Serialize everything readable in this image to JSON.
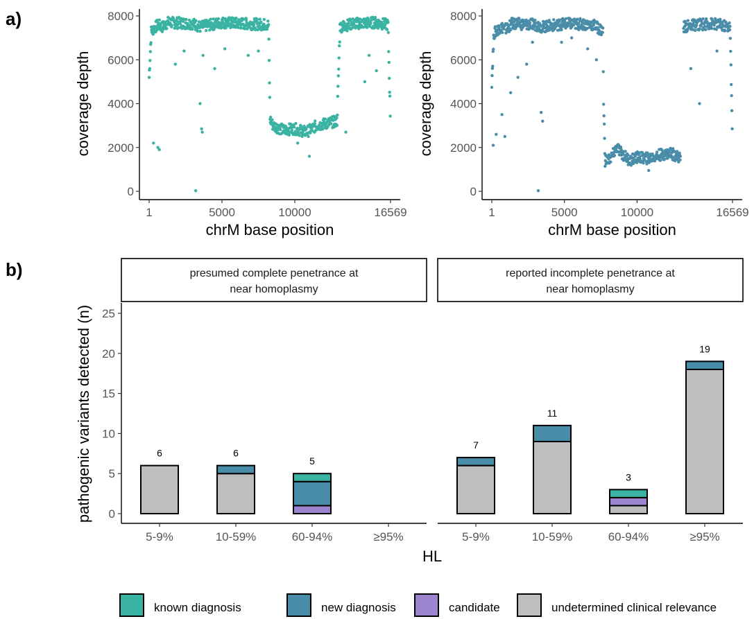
{
  "panels": {
    "a": "a)",
    "b": "b)"
  },
  "chart_data": [
    {
      "type": "scatter",
      "panel": "a-left",
      "color": "#3AB3A3",
      "xlabel": "chrM base position",
      "ylabel": "coverage depth",
      "xlim": [
        1,
        16569
      ],
      "ylim": [
        0,
        8000
      ],
      "xticks": [
        1,
        5000,
        10000,
        16569
      ],
      "xtick_labels": [
        "1",
        "5000",
        "10000",
        "16569"
      ],
      "yticks": [
        0,
        2000,
        4000,
        6000,
        8000
      ],
      "ytick_labels": [
        "0",
        "2000",
        "4000",
        "6000",
        "8000"
      ],
      "profile": [
        [
          1,
          5200
        ],
        [
          150,
          7300
        ],
        [
          600,
          7600
        ],
        [
          900,
          7500
        ],
        [
          1300,
          7700
        ],
        [
          3000,
          7650
        ],
        [
          3500,
          7500
        ],
        [
          5000,
          7700
        ],
        [
          6500,
          7650
        ],
        [
          8200,
          7600
        ],
        [
          8300,
          3300
        ],
        [
          8500,
          3000
        ],
        [
          9200,
          2800
        ],
        [
          10000,
          2850
        ],
        [
          10800,
          2700
        ],
        [
          11500,
          3000
        ],
        [
          12200,
          3100
        ],
        [
          12900,
          3200
        ],
        [
          13100,
          7500
        ],
        [
          14000,
          7650
        ],
        [
          15500,
          7700
        ],
        [
          16400,
          7600
        ],
        [
          16569,
          3000
        ]
      ],
      "outliers": [
        [
          3200,
          30
        ],
        [
          3600,
          2850
        ],
        [
          3650,
          2700
        ],
        [
          600,
          2000
        ],
        [
          700,
          1900
        ],
        [
          300,
          2200
        ],
        [
          3500,
          4000
        ],
        [
          4500,
          5600
        ],
        [
          5200,
          6500
        ],
        [
          6800,
          6200
        ],
        [
          7500,
          6400
        ],
        [
          11000,
          1600
        ],
        [
          13500,
          2700
        ],
        [
          14800,
          5000
        ],
        [
          15100,
          6200
        ],
        [
          15600,
          5500
        ],
        [
          1800,
          5800
        ],
        [
          2400,
          6400
        ],
        [
          3700,
          6200
        ],
        [
          10200,
          2200
        ]
      ]
    },
    {
      "type": "scatter",
      "panel": "a-right",
      "color": "#4A8DA8",
      "xlabel": "chrM base position",
      "ylabel": "coverage depth",
      "xlim": [
        1,
        16569
      ],
      "ylim": [
        0,
        8000
      ],
      "xticks": [
        1,
        5000,
        10000,
        16569
      ],
      "xtick_labels": [
        "1",
        "5000",
        "10000",
        "16569"
      ],
      "yticks": [
        0,
        2000,
        4000,
        6000,
        8000
      ],
      "ytick_labels": [
        "0",
        "2000",
        "4000",
        "6000",
        "8000"
      ],
      "profile": [
        [
          1,
          5000
        ],
        [
          150,
          7200
        ],
        [
          600,
          7500
        ],
        [
          1000,
          7400
        ],
        [
          1400,
          7650
        ],
        [
          3000,
          7600
        ],
        [
          3500,
          7500
        ],
        [
          5000,
          7650
        ],
        [
          7000,
          7600
        ],
        [
          7650,
          7300
        ],
        [
          7700,
          3900
        ],
        [
          7800,
          1400
        ],
        [
          8200,
          1500
        ],
        [
          8600,
          2000
        ],
        [
          9000,
          1700
        ],
        [
          9500,
          1400
        ],
        [
          10000,
          1550
        ],
        [
          10800,
          1500
        ],
        [
          11500,
          1650
        ],
        [
          12300,
          1750
        ],
        [
          12900,
          1550
        ],
        [
          13000,
          1450
        ]
      ],
      "profile2": [
        [
          13200,
          7500
        ],
        [
          14000,
          7600
        ],
        [
          15200,
          7650
        ],
        [
          16400,
          7500
        ],
        [
          16569,
          2400
        ]
      ],
      "outliers": [
        [
          3200,
          30
        ],
        [
          100,
          2100
        ],
        [
          300,
          2600
        ],
        [
          700,
          3500
        ],
        [
          900,
          2500
        ],
        [
          1300,
          4500
        ],
        [
          2400,
          5800
        ],
        [
          3400,
          3600
        ],
        [
          3500,
          3200
        ],
        [
          4800,
          6800
        ],
        [
          6600,
          6500
        ],
        [
          7200,
          6000
        ],
        [
          10800,
          950
        ],
        [
          13700,
          5600
        ],
        [
          14300,
          4000
        ],
        [
          15500,
          6400
        ],
        [
          1800,
          5200
        ],
        [
          2800,
          6800
        ],
        [
          5500,
          7000
        ]
      ]
    },
    {
      "type": "bar",
      "panel": "b",
      "stacked": true,
      "xlabel": "HL",
      "ylabel": "pathogenic variants detected (n)",
      "ylim": [
        0,
        25
      ],
      "yticks": [
        0,
        5,
        10,
        15,
        20,
        25
      ],
      "categories": [
        "5-9%",
        "10-59%",
        "60-94%",
        "≥95%"
      ],
      "facets": [
        {
          "strip_line1": "presumed complete penetrance at",
          "strip_line2": "near homoplasmy",
          "totals": [
            "6",
            "6",
            "5",
            ""
          ],
          "series": [
            {
              "key": "undetermined",
              "values": [
                6,
                5,
                0,
                0
              ]
            },
            {
              "key": "candidate",
              "values": [
                0,
                0,
                1,
                0
              ]
            },
            {
              "key": "new",
              "values": [
                0,
                1,
                3,
                0
              ]
            },
            {
              "key": "known",
              "values": [
                0,
                0,
                1,
                0
              ]
            }
          ]
        },
        {
          "strip_line1": "reported incomplete penetrance at",
          "strip_line2": "near homoplasmy",
          "totals": [
            "7",
            "11",
            "3",
            "19"
          ],
          "series": [
            {
              "key": "undetermined",
              "values": [
                6,
                9,
                1,
                18
              ]
            },
            {
              "key": "candidate",
              "values": [
                0,
                0,
                1,
                0
              ]
            },
            {
              "key": "new",
              "values": [
                1,
                2,
                0,
                1
              ]
            },
            {
              "key": "known",
              "values": [
                0,
                0,
                1,
                0
              ]
            }
          ]
        }
      ],
      "legend_position": "bottom",
      "legend": [
        {
          "key": "known",
          "name": "known diagnosis",
          "color": "#3AB3A3"
        },
        {
          "key": "new",
          "name": "new diagnosis",
          "color": "#4A8DA8"
        },
        {
          "key": "candidate",
          "name": "candidate",
          "color": "#9C84CF"
        },
        {
          "key": "undetermined",
          "name": "undetermined clinical relevance",
          "color": "#BEBEBE"
        }
      ]
    }
  ]
}
